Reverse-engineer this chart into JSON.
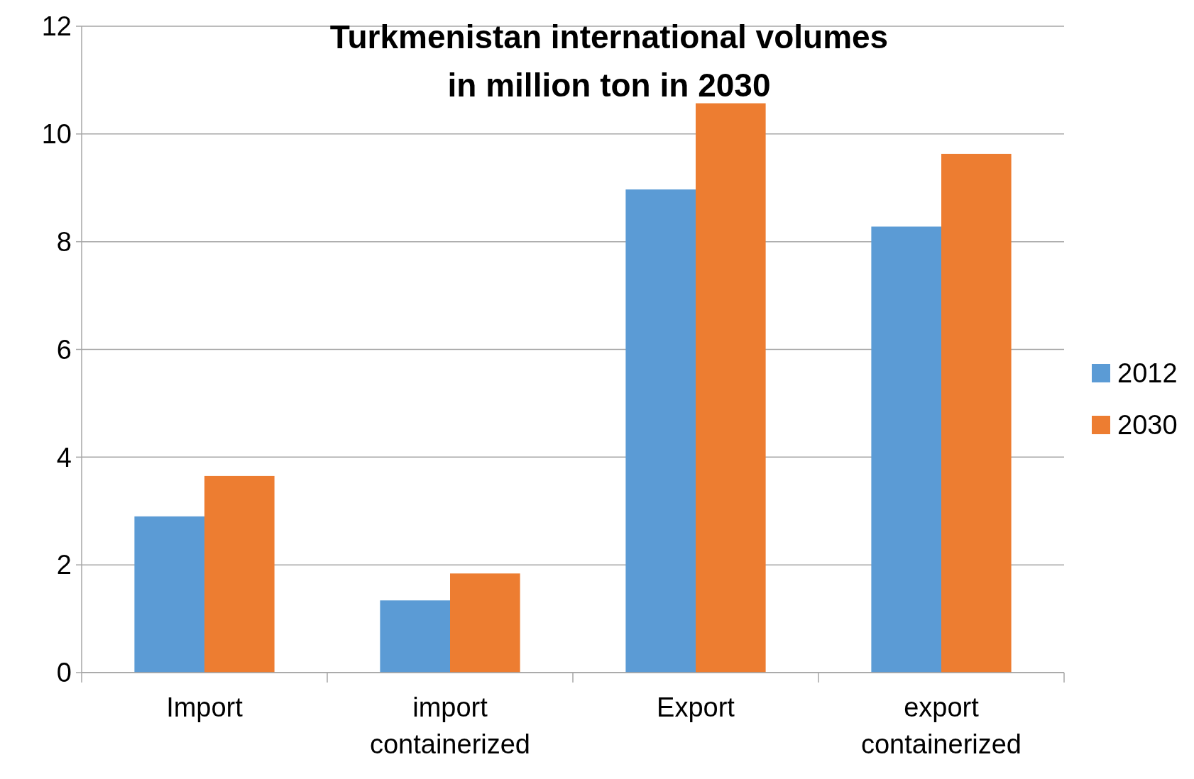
{
  "chart_data": {
    "type": "bar",
    "title": "Turkmenistan international volumes in million ton in 2030",
    "categories": [
      "Import",
      "import containerized",
      "Export",
      "export containerized"
    ],
    "series": [
      {
        "name": "2012",
        "color": "#5b9bd5",
        "values": [
          2.9,
          1.34,
          8.97,
          8.28
        ]
      },
      {
        "name": "2030",
        "color": "#ed7d31",
        "values": [
          3.65,
          1.84,
          10.57,
          9.63
        ]
      }
    ],
    "ylim": [
      0,
      12
    ],
    "yticks": [
      0,
      2,
      4,
      6,
      8,
      10,
      12
    ],
    "grid": "y",
    "legend": "right"
  }
}
